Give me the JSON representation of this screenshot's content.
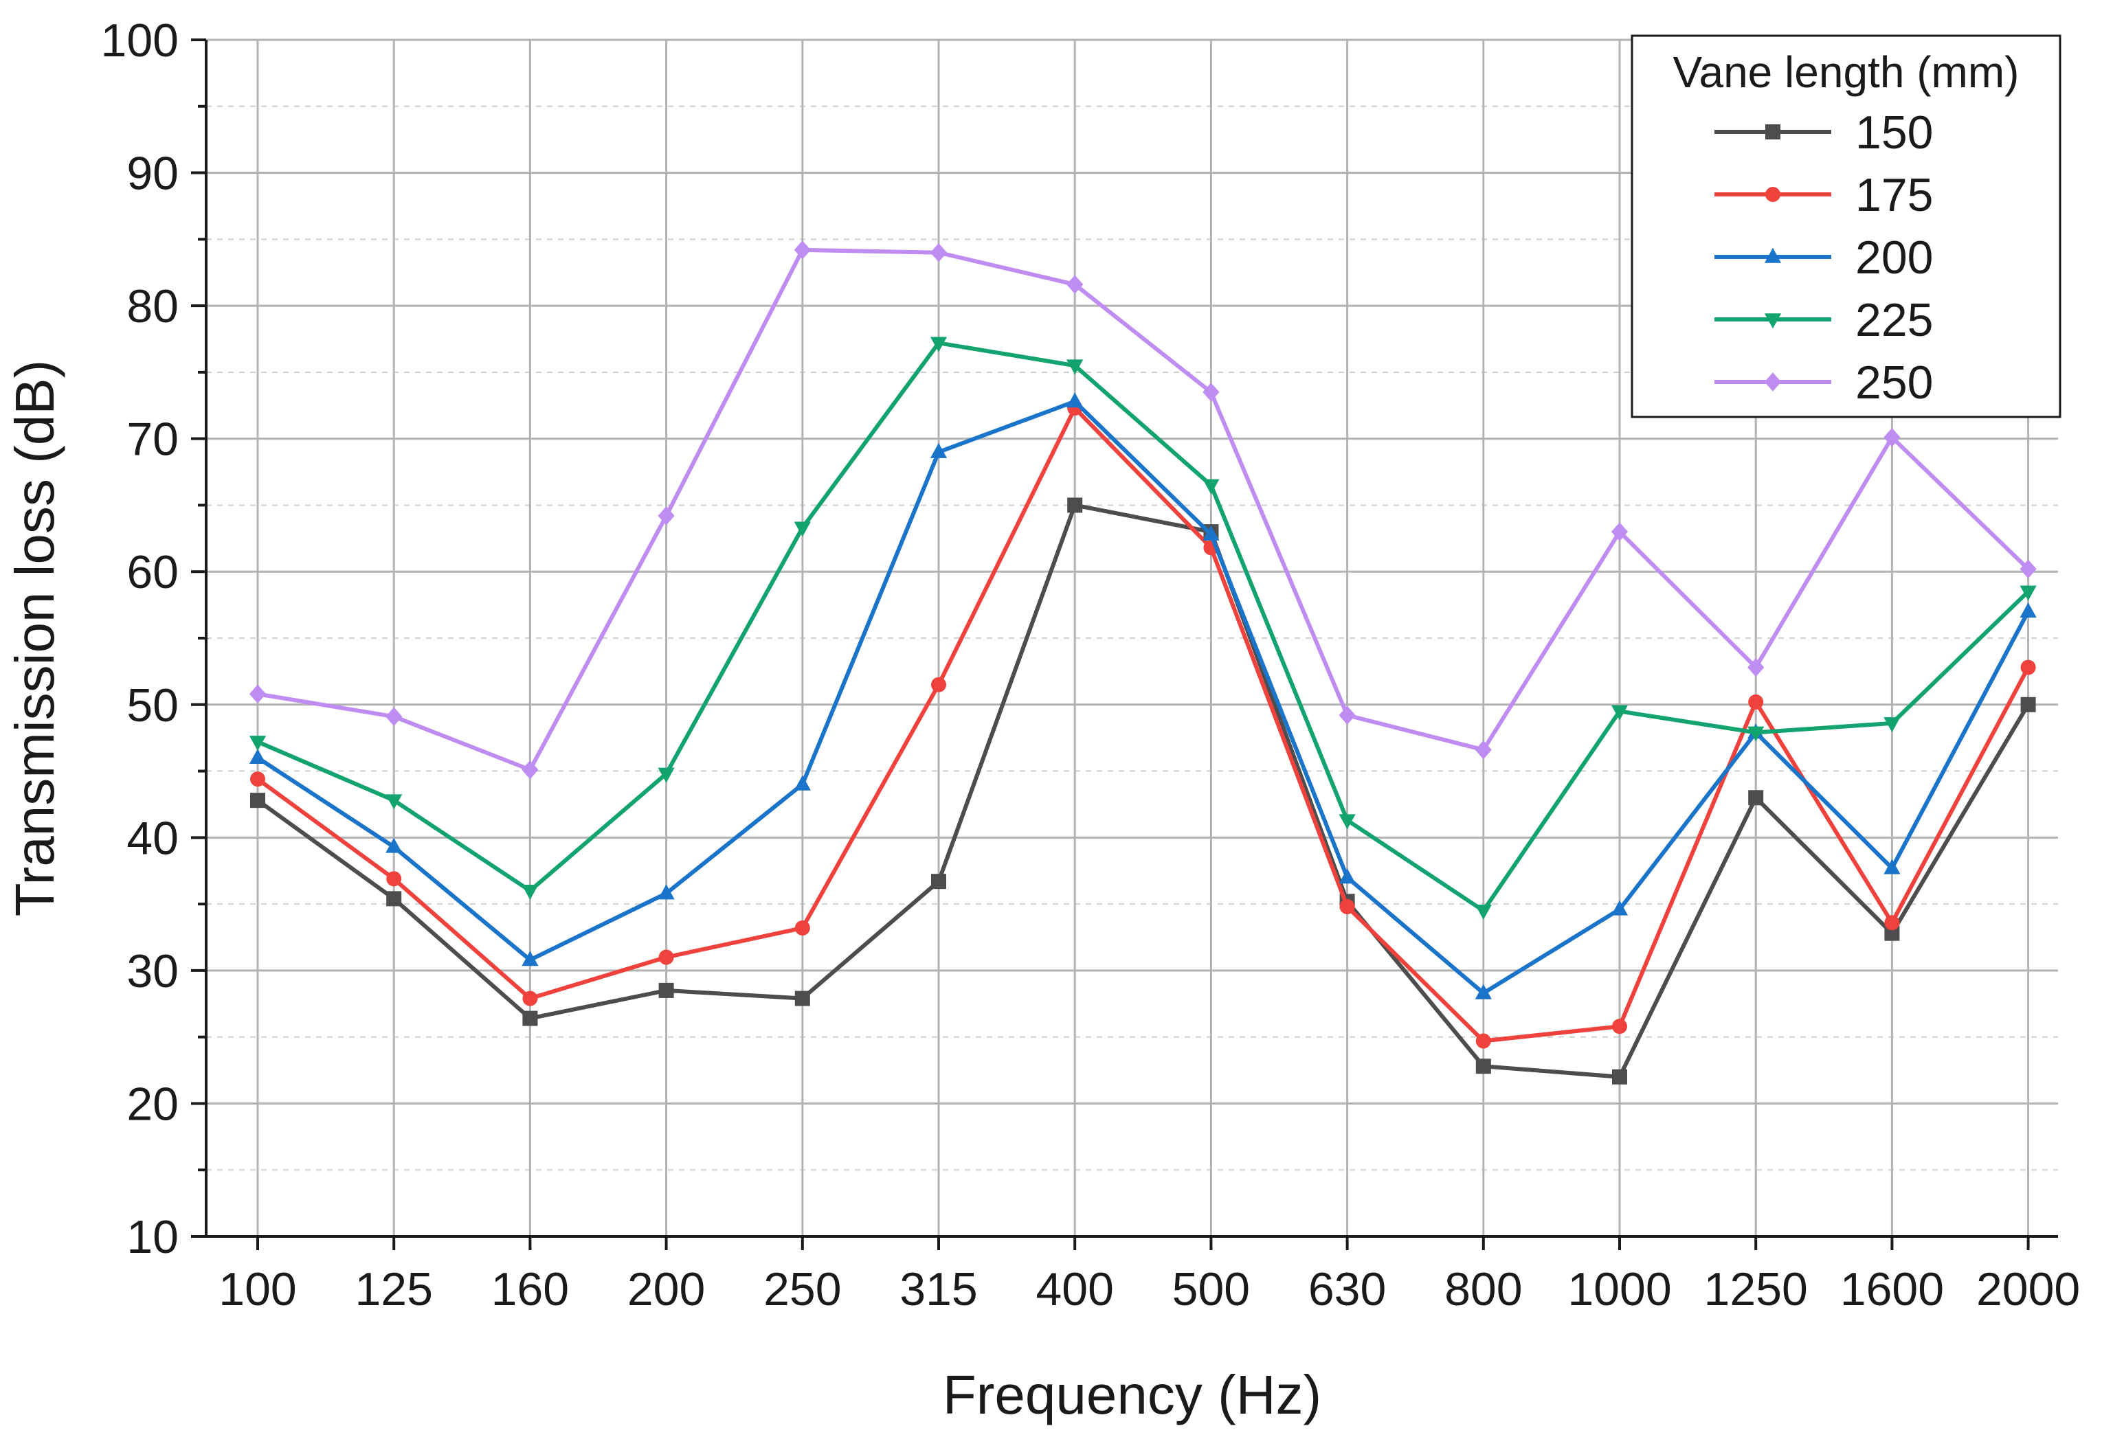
{
  "chart_data": {
    "type": "line",
    "title": "",
    "xlabel": "Frequency (Hz)",
    "ylabel": "Transmission loss (dB)",
    "categories": [
      "100",
      "125",
      "160",
      "200",
      "250",
      "315",
      "400",
      "500",
      "630",
      "800",
      "1000",
      "1250",
      "1600",
      "2000"
    ],
    "ylim": [
      10,
      100
    ],
    "yticks": [
      10,
      20,
      30,
      40,
      50,
      60,
      70,
      80,
      90,
      100
    ],
    "grid": true,
    "legend": {
      "title": "Vane length (mm)",
      "position": "top-right"
    },
    "series": [
      {
        "name": "150",
        "color": "#4d4d4d",
        "marker": "square",
        "values": [
          42.8,
          35.4,
          26.4,
          28.5,
          27.9,
          36.7,
          65.0,
          63.0,
          35.2,
          22.8,
          22.0,
          43.0,
          32.8,
          50.0
        ]
      },
      {
        "name": "175",
        "color": "#f0423c",
        "marker": "circle",
        "values": [
          44.4,
          36.9,
          27.9,
          31.0,
          33.2,
          51.5,
          72.3,
          61.8,
          34.8,
          24.7,
          25.8,
          50.2,
          33.6,
          52.8
        ]
      },
      {
        "name": "200",
        "color": "#1a74c9",
        "marker": "triangle-up",
        "values": [
          46.0,
          39.3,
          30.8,
          35.8,
          44.0,
          69.0,
          72.8,
          62.8,
          37.0,
          28.3,
          34.6,
          47.9,
          37.7,
          57.0
        ]
      },
      {
        "name": "225",
        "color": "#12a36e",
        "marker": "triangle-down",
        "values": [
          47.2,
          42.8,
          36.0,
          44.8,
          63.3,
          77.2,
          75.5,
          66.5,
          41.3,
          34.5,
          49.5,
          47.9,
          48.6,
          58.5
        ]
      },
      {
        "name": "250",
        "color": "#bf8df2",
        "marker": "diamond",
        "values": [
          50.8,
          49.1,
          45.1,
          64.2,
          84.2,
          84.0,
          81.6,
          73.5,
          49.2,
          46.6,
          63.0,
          52.8,
          70.1,
          60.2
        ]
      }
    ]
  }
}
